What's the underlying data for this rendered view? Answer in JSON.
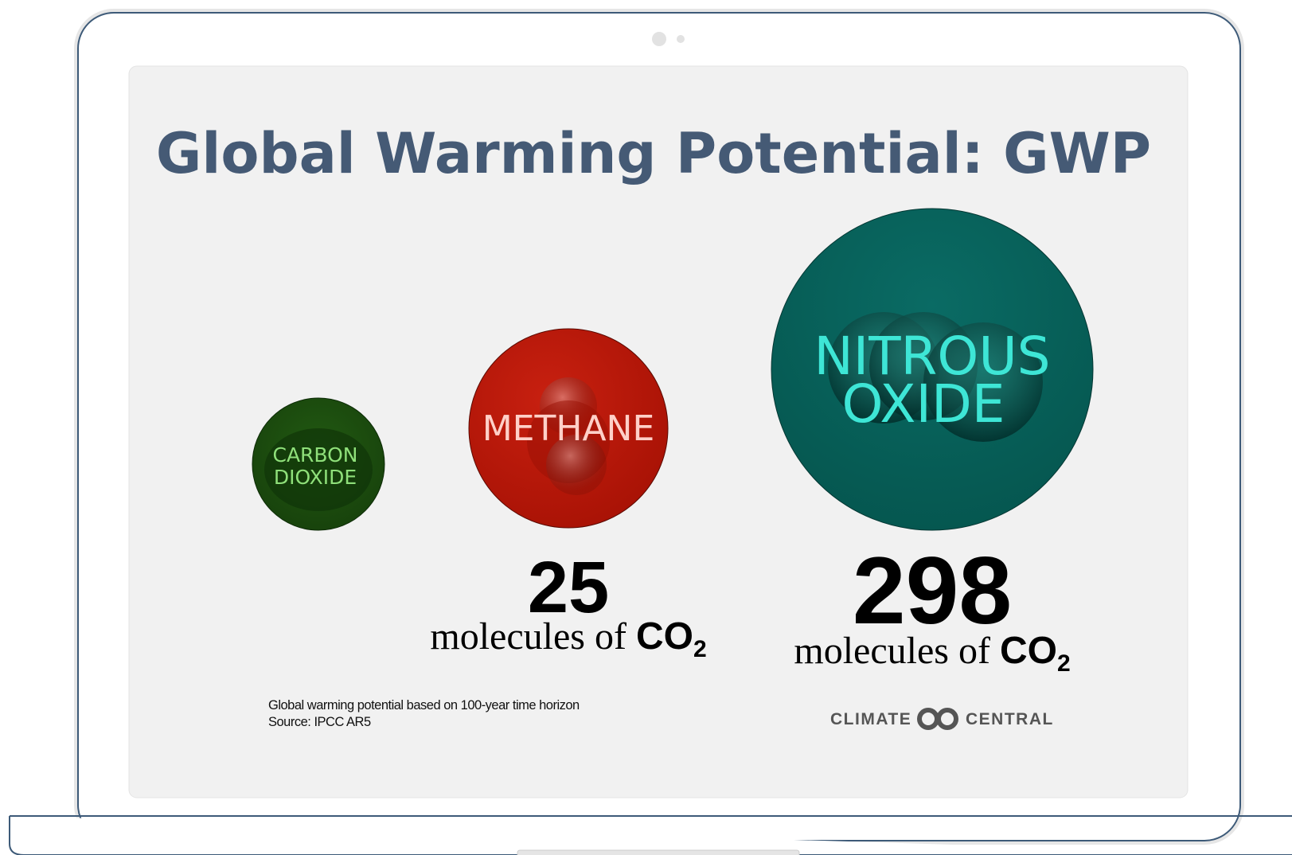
{
  "title": "Global Warming Potential: GWP",
  "gases": [
    {
      "label_lines": [
        "CARBON",
        "DIOXIDE"
      ]
    },
    {
      "label_lines": [
        "METHANE"
      ],
      "value": 25,
      "unit": "molecules of",
      "formula": "CO",
      "subscript": "2"
    },
    {
      "label_lines": [
        "NITROUS",
        "OXIDE"
      ],
      "value": 298,
      "unit": "molecules of",
      "formula": "CO",
      "subscript": "2"
    }
  ],
  "footnote": [
    "Global warming potential based on 100-year time horizon",
    "Source: IPCC AR5"
  ],
  "logo": {
    "left": "CLIMATE",
    "right": "CENTRAL"
  }
}
